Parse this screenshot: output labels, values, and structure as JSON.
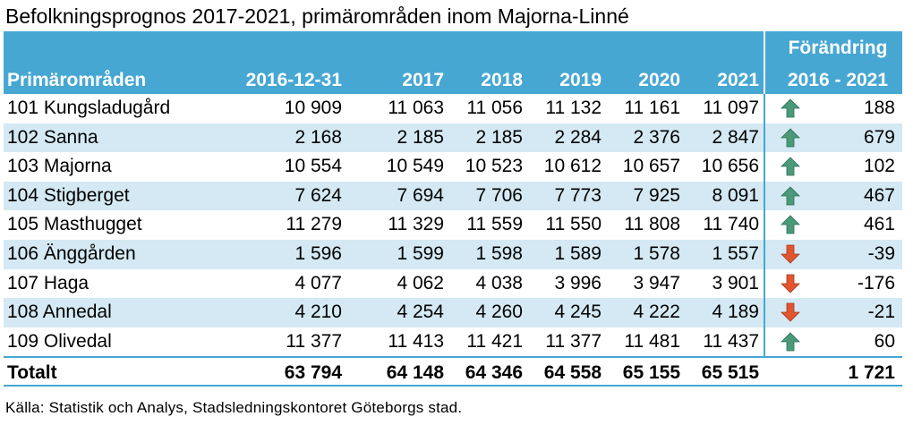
{
  "title": "Befolkningsprognos 2017-2021, primärområden inom Majorna-Linné",
  "columns": {
    "name": "Primärområden",
    "years": [
      "2016-12-31",
      "2017",
      "2018",
      "2019",
      "2020",
      "2021"
    ],
    "change_line1": "Förändring",
    "change_line2": "2016 - 2021"
  },
  "rows": [
    {
      "name": "101 Kungsladugård",
      "values": [
        "10 909",
        "11 063",
        "11 056",
        "11 132",
        "11 161",
        "11 097"
      ],
      "change": "188",
      "trend": "up"
    },
    {
      "name": "102 Sanna",
      "values": [
        "2 168",
        "2 185",
        "2 185",
        "2 284",
        "2 376",
        "2 847"
      ],
      "change": "679",
      "trend": "up"
    },
    {
      "name": "103 Majorna",
      "values": [
        "10 554",
        "10 549",
        "10 523",
        "10 612",
        "10 657",
        "10 656"
      ],
      "change": "102",
      "trend": "up"
    },
    {
      "name": "104 Stigberget",
      "values": [
        "7 624",
        "7 694",
        "7 706",
        "7 773",
        "7 925",
        "8 091"
      ],
      "change": "467",
      "trend": "up"
    },
    {
      "name": "105 Masthugget",
      "values": [
        "11 279",
        "11 329",
        "11 559",
        "11 550",
        "11 808",
        "11 740"
      ],
      "change": "461",
      "trend": "up"
    },
    {
      "name": "106 Änggården",
      "values": [
        "1 596",
        "1 599",
        "1 598",
        "1 589",
        "1 578",
        "1 557"
      ],
      "change": "-39",
      "trend": "down"
    },
    {
      "name": "107 Haga",
      "values": [
        "4 077",
        "4 062",
        "4 038",
        "3 996",
        "3 947",
        "3 901"
      ],
      "change": "-176",
      "trend": "down"
    },
    {
      "name": "108 Annedal",
      "values": [
        "4 210",
        "4 254",
        "4 260",
        "4 245",
        "4 222",
        "4 189"
      ],
      "change": "-21",
      "trend": "down"
    },
    {
      "name": "109 Olivedal",
      "values": [
        "11 377",
        "11 413",
        "11 421",
        "11 377",
        "11 481",
        "11 437"
      ],
      "change": "60",
      "trend": "up"
    }
  ],
  "total": {
    "name": "Totalt",
    "values": [
      "63 794",
      "64 148",
      "64 346",
      "64 558",
      "65 155",
      "65 515"
    ],
    "change": "1 721"
  },
  "icons": {
    "up": "arrow-up-icon",
    "down": "arrow-down-icon"
  },
  "colors": {
    "header": "#46a7d2",
    "alt_row": "#d4e9f3",
    "up": "#4a9a7a",
    "down": "#e2552f"
  },
  "source": "Källa:  Statistik och Analys, Stadsledningskontoret Göteborgs stad."
}
